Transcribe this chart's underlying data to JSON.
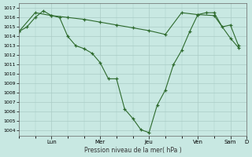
{
  "line1_x": [
    0,
    1,
    2,
    3,
    4,
    5,
    6,
    7,
    8,
    9,
    10,
    11,
    12,
    13,
    14,
    15,
    16,
    17,
    18,
    19,
    20,
    21,
    22,
    23,
    24,
    25,
    26,
    27
  ],
  "line1_y": [
    1014.5,
    1015.0,
    1016.0,
    1016.7,
    1016.2,
    1016.0,
    1014.0,
    1013.0,
    1012.7,
    1012.2,
    1011.2,
    1009.5,
    1009.5,
    1006.3,
    1005.3,
    1004.1,
    1003.8,
    1006.7,
    1008.3,
    1011.0,
    1012.5,
    1014.5,
    1016.3,
    1016.5,
    1016.5,
    1015.0,
    1015.2,
    1013.0
  ],
  "line2_x": [
    0,
    2,
    4,
    6,
    8,
    10,
    12,
    14,
    16,
    18,
    20,
    22,
    24,
    26,
    27
  ],
  "line2_y": [
    1014.5,
    1016.5,
    1016.2,
    1016.0,
    1015.8,
    1015.5,
    1015.2,
    1014.9,
    1014.6,
    1014.2,
    1016.5,
    1016.3,
    1016.2,
    1013.8,
    1012.8
  ],
  "line_color": "#2d6a2d",
  "bg_color": "#c8e8e2",
  "grid_color": "#aaccc6",
  "ylabel": "Pression niveau de la mer( hPa )",
  "ylim_min": 1003.5,
  "ylim_max": 1017.5,
  "day_labels": [
    "Lun",
    "Mer",
    "Jeu",
    "Ven",
    "Sam",
    "D"
  ],
  "day_tick_x": [
    4,
    10,
    16,
    22,
    26,
    28
  ],
  "xlim_min": 0,
  "xlim_max": 28,
  "marker": "+"
}
